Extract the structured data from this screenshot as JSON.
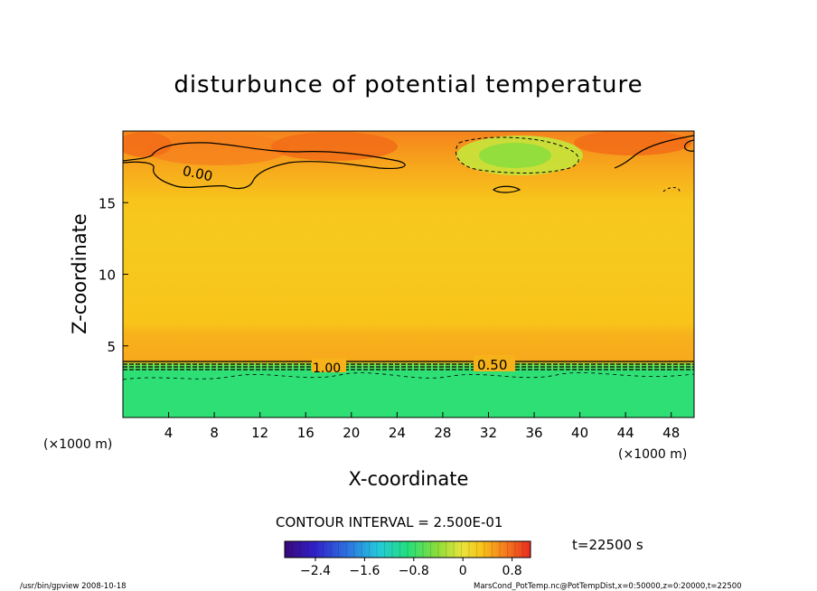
{
  "chart_data": {
    "type": "heatmap",
    "title": "disturbunce of potential temperature",
    "xlabel": "X-coordinate",
    "ylabel": "Z-coordinate",
    "x_unit_left": "(×1000 m)",
    "x_unit_right": "(×1000 m)",
    "xlim": [
      0,
      50
    ],
    "ylim": [
      0,
      20
    ],
    "x_ticks": [
      4,
      8,
      12,
      16,
      20,
      24,
      28,
      32,
      36,
      40,
      44,
      48
    ],
    "y_ticks": [
      5,
      10,
      15
    ],
    "contour_interval": "CONTOUR INTERVAL = 2.500E-01",
    "time_label": "t=22500 s",
    "colorbar_ticks": [
      "−2.4",
      "−1.6",
      "−0.8",
      "0",
      "0.8"
    ],
    "colorbar_range": [
      -2.9,
      1.1
    ],
    "contour_labels": [
      "0.00",
      "1.00",
      "0.50"
    ],
    "z_profile": [
      {
        "z": 0.0,
        "v": -0.85
      },
      {
        "z": 3.2,
        "v": -0.85
      },
      {
        "z": 3.7,
        "v": -0.55
      },
      {
        "z": 3.9,
        "v": 0.45
      },
      {
        "z": 5.8,
        "v": 0.4
      },
      {
        "z": 6.6,
        "v": 0.3
      },
      {
        "z": 12.0,
        "v": 0.25
      },
      {
        "z": 15.0,
        "v": 0.28
      },
      {
        "z": 17.5,
        "v": 0.45
      },
      {
        "z": 20.0,
        "v": 0.65
      }
    ]
  },
  "footer": {
    "left": "/usr/bin/gpview   2008-10-18",
    "right": "MarsCond_PotTemp.nc@PotTempDist,x=0:50000,z=0:20000,t=22500"
  },
  "colors": {
    "negative_layer": "#21e27a",
    "green_patch": "#8fdc3c",
    "warm_patch": "#f26a18"
  }
}
